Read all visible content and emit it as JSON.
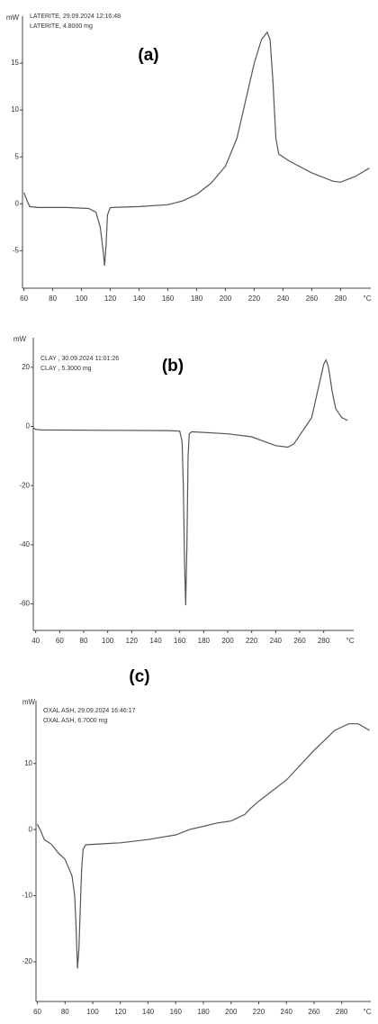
{
  "chart_data": [
    {
      "type": "line",
      "title": "(a)",
      "annotations": [
        "LATERITE, 29.09.2024 12:16:48",
        "LATERITE, 4.8000 mg"
      ],
      "y_unit": "mW",
      "x_unit": "°C",
      "x": [
        60,
        62,
        64,
        70,
        90,
        105,
        110,
        113,
        115,
        116,
        117,
        118,
        120,
        140,
        160,
        170,
        180,
        190,
        200,
        208,
        214,
        220,
        225,
        229,
        231,
        233,
        235,
        237,
        245,
        260,
        275,
        280,
        290,
        300
      ],
      "series": [
        {
          "color": "#555555",
          "values": [
            1.2,
            0.4,
            -0.3,
            -0.4,
            -0.4,
            -0.5,
            -0.9,
            -2.5,
            -5,
            -6.6,
            -4.5,
            -1.2,
            -0.4,
            -0.3,
            -0.1,
            0.3,
            1,
            2.2,
            4,
            7,
            11,
            15,
            17.5,
            18.3,
            17.5,
            13,
            7,
            5.3,
            4.5,
            3.3,
            2.4,
            2.3,
            2.9,
            3.8
          ]
        }
      ],
      "xlim": [
        59,
        301
      ],
      "ylim": [
        -9,
        20
      ],
      "xticks": [
        60,
        80,
        100,
        120,
        140,
        160,
        180,
        200,
        220,
        240,
        260,
        280
      ],
      "yticks": [
        -5,
        0,
        5,
        10,
        15
      ]
    },
    {
      "type": "line",
      "title": "(b)",
      "annotations": [
        "CLAY , 30.09.2024 11:01:26",
        "CLAY , 5.3000 mg"
      ],
      "y_unit": "mW",
      "x_unit": "°C",
      "x": [
        38,
        40,
        45,
        100,
        150,
        160,
        162,
        163,
        164,
        165,
        166,
        167,
        168,
        170,
        200,
        220,
        230,
        240,
        250,
        255,
        260,
        265,
        270,
        275,
        280,
        282,
        284,
        287,
        290,
        295,
        300
      ],
      "series": [
        {
          "color": "#555555",
          "values": [
            -0.5,
            -1,
            -1.2,
            -1.3,
            -1.4,
            -1.6,
            -5,
            -20,
            -45,
            -60.5,
            -40,
            -10,
            -2.5,
            -1.8,
            -2.5,
            -3.5,
            -5,
            -6.5,
            -7,
            -6,
            -3,
            0,
            3,
            12,
            21,
            22.5,
            20,
            12,
            6,
            3,
            2
          ]
        }
      ],
      "xlim": [
        38,
        305
      ],
      "ylim": [
        -69,
        30
      ],
      "xticks": [
        40,
        60,
        80,
        100,
        120,
        140,
        160,
        180,
        200,
        220,
        240,
        260,
        280
      ],
      "yticks": [
        -60,
        -40,
        -20,
        0,
        20
      ]
    },
    {
      "type": "line",
      "title": "(c)",
      "annotations": [
        "OXAL ASH, 29.09.2024 16:46:17",
        "OXAL ASH, 6.7000 mg"
      ],
      "y_unit": "mW",
      "x_unit": "°C",
      "x": [
        60,
        62,
        65,
        70,
        75,
        80,
        85,
        87,
        88,
        89,
        90,
        91,
        92,
        93,
        95,
        120,
        140,
        160,
        170,
        180,
        190,
        200,
        210,
        214,
        220,
        240,
        260,
        275,
        285,
        292,
        300
      ],
      "series": [
        {
          "color": "#555555",
          "values": [
            0.8,
            0,
            -1.5,
            -2.2,
            -3.5,
            -4.5,
            -7,
            -10,
            -15,
            -21,
            -18,
            -12,
            -6,
            -3,
            -2.3,
            -2,
            -1.5,
            -0.8,
            0,
            0.5,
            1,
            1.3,
            2.3,
            3.2,
            4.3,
            7.5,
            12,
            15,
            16,
            16,
            15
          ]
        }
      ],
      "xlim": [
        59,
        301
      ],
      "ylim": [
        -26,
        19.5
      ],
      "xticks": [
        60,
        80,
        100,
        120,
        140,
        160,
        180,
        200,
        220,
        240,
        260,
        280
      ],
      "yticks": [
        -20,
        -10,
        0,
        10
      ]
    }
  ]
}
